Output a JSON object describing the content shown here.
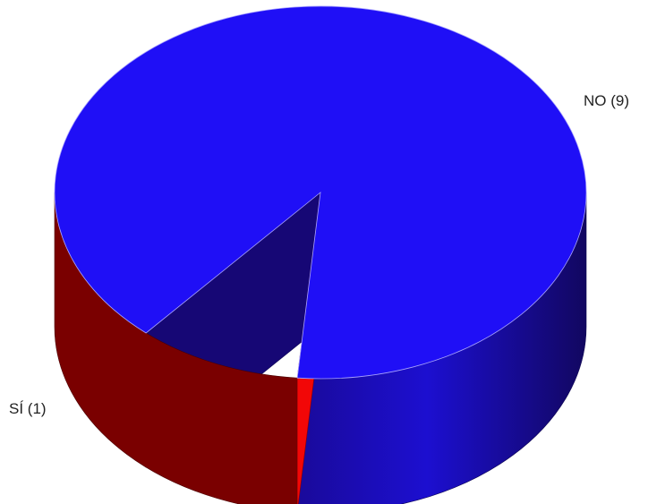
{
  "chart_data": {
    "type": "pie",
    "style": "3d",
    "categories": [
      "NO",
      "SÍ"
    ],
    "values": [
      9,
      1
    ],
    "labels": [
      "NO (9)",
      "SÍ (1)"
    ],
    "colors": {
      "NO": "#1f0ff6",
      "SÍ": "#f20707"
    },
    "legend": "none"
  }
}
